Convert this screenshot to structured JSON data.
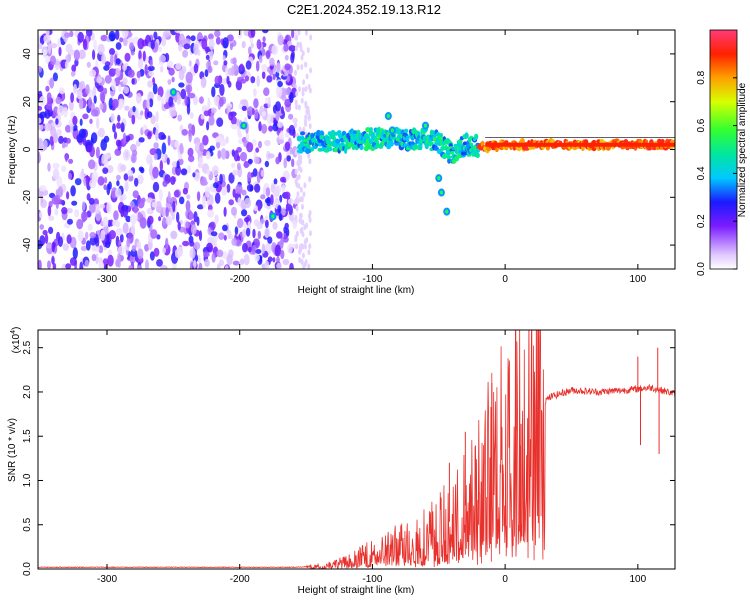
{
  "figure": {
    "title": "C2E1.2024.352.19.13.R12"
  },
  "chart_data": [
    {
      "type": "heatmap",
      "xlabel": "Height of straight line (km)",
      "ylabel": "Frequency (Hz)",
      "xlim": [
        -352,
        128
      ],
      "ylim": [
        -50,
        50
      ],
      "x_ticks": [
        -300,
        -200,
        -100,
        0,
        100
      ],
      "x_tick_labels": [
        "-300",
        "-200",
        "-100",
        "0",
        "100"
      ],
      "y_ticks": [
        -40,
        -20,
        0,
        20,
        40
      ],
      "y_tick_labels": [
        "-40",
        "-20",
        "0",
        "20",
        "40"
      ],
      "noise_region_x": [
        -352,
        -158
      ],
      "ridge": [
        {
          "x": -155,
          "y": 3
        },
        {
          "x": -130,
          "y": 3
        },
        {
          "x": -110,
          "y": 4
        },
        {
          "x": -90,
          "y": 5
        },
        {
          "x": -75,
          "y": 4
        },
        {
          "x": -60,
          "y": 5
        },
        {
          "x": -50,
          "y": 3
        },
        {
          "x": -40,
          "y": -2
        },
        {
          "x": -30,
          "y": 2
        },
        {
          "x": -15,
          "y": 1
        },
        {
          "x": 0,
          "y": 2
        },
        {
          "x": 40,
          "y": 2
        },
        {
          "x": 80,
          "y": 2
        },
        {
          "x": 100,
          "y": 2
        },
        {
          "x": 128,
          "y": 2
        }
      ],
      "blobs": [
        {
          "x": -197,
          "y": 10
        },
        {
          "x": -175,
          "y": -28
        },
        {
          "x": -250,
          "y": 24
        },
        {
          "x": -88,
          "y": 14
        },
        {
          "x": -85,
          "y": 8
        },
        {
          "x": -60,
          "y": 10
        },
        {
          "x": -48,
          "y": -18
        },
        {
          "x": -44,
          "y": -26
        },
        {
          "x": -50,
          "y": -12
        }
      ],
      "colorbar": {
        "label": "Normalized spectral amplitude",
        "range": [
          0,
          1
        ],
        "ticks": [
          0.0,
          0.2,
          0.4,
          0.6,
          0.8
        ],
        "tick_labels": [
          "0.0",
          "0.2",
          "0.4",
          "0.6",
          "0.8"
        ]
      }
    },
    {
      "type": "line",
      "xlabel": "Height of straight line (km)",
      "ylabel": "SNR (10 * v/v)",
      "y_multiplier": "(x10",
      "y_multiplier_exp": "4",
      "y_multiplier_close": ")",
      "xlim": [
        -352,
        128
      ],
      "ylim": [
        0,
        2.7
      ],
      "x_ticks": [
        -300,
        -200,
        -100,
        0,
        100
      ],
      "x_tick_labels": [
        "-300",
        "-200",
        "-100",
        "0",
        "100"
      ],
      "y_ticks": [
        0.0,
        0.5,
        1.0,
        1.5,
        2.0,
        2.5
      ],
      "y_tick_labels": [
        "0.0",
        "0.5",
        "1.0",
        "1.5",
        "2.0",
        "2.5"
      ],
      "series": [
        {
          "color": "#e8312c",
          "envelope": [
            {
              "x": -352,
              "y": 0.02
            },
            {
              "x": -160,
              "y": 0.02
            },
            {
              "x": -140,
              "y": 0.03
            },
            {
              "x": -120,
              "y": 0.08
            },
            {
              "x": -100,
              "y": 0.18
            },
            {
              "x": -80,
              "y": 0.28
            },
            {
              "x": -60,
              "y": 0.38
            },
            {
              "x": -40,
              "y": 0.55
            },
            {
              "x": -25,
              "y": 0.8
            },
            {
              "x": -15,
              "y": 1.1
            },
            {
              "x": -5,
              "y": 1.3
            },
            {
              "x": 5,
              "y": 1.5
            },
            {
              "x": 15,
              "y": 1.7
            },
            {
              "x": 25,
              "y": 1.85
            },
            {
              "x": 35,
              "y": 1.95
            },
            {
              "x": 50,
              "y": 2.02
            },
            {
              "x": 70,
              "y": 2.0
            },
            {
              "x": 90,
              "y": 2.02
            },
            {
              "x": 110,
              "y": 2.05
            },
            {
              "x": 128,
              "y": 1.98
            }
          ],
          "spikes": [
            {
              "x": -10,
              "y": 2.1
            },
            {
              "x": 8,
              "y": 2.7
            },
            {
              "x": 12,
              "y": 0.42
            },
            {
              "x": -20,
              "y": 0.5
            },
            {
              "x": 100,
              "y": 2.4
            },
            {
              "x": 102,
              "y": 1.4
            },
            {
              "x": 115,
              "y": 2.5
            },
            {
              "x": 116,
              "y": 1.3
            },
            {
              "x": -42,
              "y": 1.2
            },
            {
              "x": -30,
              "y": 1.55
            }
          ]
        }
      ]
    }
  ]
}
